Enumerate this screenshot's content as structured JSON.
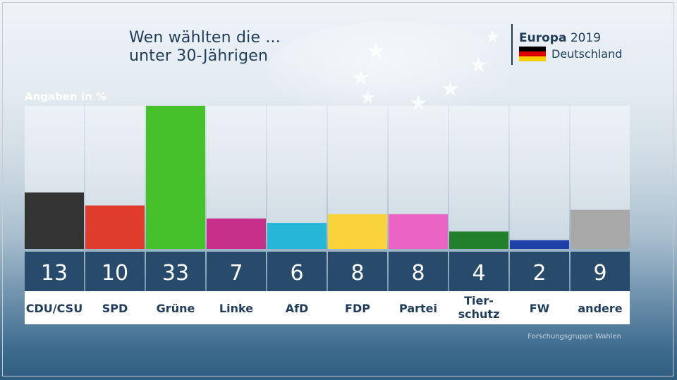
{
  "title_line1": "Wen wählten die ...",
  "title_line2": "unter 30-Jährigen",
  "brand": {
    "name": "Europa",
    "year": "2019",
    "country": "Deutschland",
    "flag_colors": [
      "#000000",
      "#dd0000",
      "#ffce00"
    ]
  },
  "source": "Forschungsgruppe Wahlen",
  "chart_data": {
    "type": "bar",
    "title": "Wen wählten die ... unter 30-Jährigen",
    "unit_label": "Angaben in %",
    "categories": [
      [
        "CDU/CSU"
      ],
      [
        "SPD"
      ],
      [
        "Grüne"
      ],
      [
        "Linke"
      ],
      [
        "AfD"
      ],
      [
        "FDP"
      ],
      [
        "Partei"
      ],
      [
        "Tier-",
        "schutz"
      ],
      [
        "FW"
      ],
      [
        "andere"
      ]
    ],
    "values": [
      13,
      10,
      33,
      7,
      6,
      8,
      8,
      4,
      2,
      9
    ],
    "colors": [
      "#333333",
      "#e03c2e",
      "#45c12b",
      "#c62f8a",
      "#26b6d7",
      "#f9d33a",
      "#ea62c4",
      "#227f2b",
      "#1e3fa6",
      "#a8a8a8"
    ],
    "ylim": [
      0,
      33
    ],
    "grid": false,
    "legend": "none"
  }
}
